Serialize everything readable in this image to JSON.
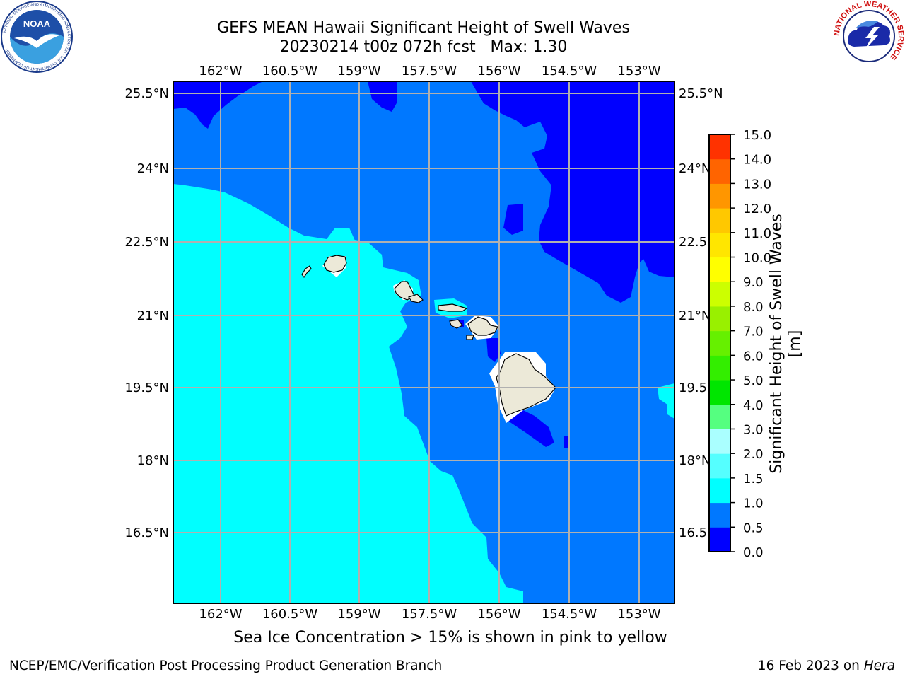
{
  "header": {
    "title": "GEFS MEAN Hawaii Significant Height of Swell Waves",
    "subtitle": "20230214 t00z 072h fcst   Max: 1.30"
  },
  "logos": {
    "noaa": {
      "text": "NOAA",
      "ring_text": "NATIONAL OCEANIC AND ATMOSPHERIC ADMINISTRATION · U.S. DEPARTMENT OF COMMERCE"
    },
    "nws": {
      "ring_text": "NATIONAL WEATHER SERVICE"
    }
  },
  "map": {
    "lon_ticks": [
      "162°W",
      "160.5°W",
      "159°W",
      "157.5°W",
      "156°W",
      "154.5°W",
      "153°W"
    ],
    "lat_ticks": [
      "25.5°N",
      "24°N",
      "22.5°N",
      "21°N",
      "19.5°N",
      "18°N",
      "16.5°N"
    ],
    "right_lat_ticks": [
      "25.5°N",
      "24°N",
      "22.5",
      "21°N",
      "19.5",
      "18°N",
      "16.5"
    ],
    "colors": {
      "band_0_0_5": "#0000ff",
      "band_0_5_1_0": "#0078ff",
      "band_1_0_1_5": "#00ffff",
      "land": "#ece9d8",
      "grid": "#b0b0b0"
    },
    "islands": [
      "Kauai",
      "Niihau",
      "Oahu",
      "Molokai",
      "Lanai",
      "Maui",
      "Kahoolawe",
      "Hawaii"
    ]
  },
  "colorbar": {
    "label": "Significant Height of Swell Waves [m]",
    "ticks": [
      "0.0",
      "0.5",
      "1.0",
      "1.5",
      "2.0",
      "3.0",
      "4.0",
      "5.0",
      "6.0",
      "7.0",
      "8.0",
      "9.0",
      "10.0",
      "11.0",
      "12.0",
      "13.0",
      "14.0",
      "15.0"
    ],
    "colors": [
      "#0000ff",
      "#0078ff",
      "#00ffff",
      "#55ffff",
      "#aaffff",
      "#55ff80",
      "#00e600",
      "#33ee00",
      "#66f000",
      "#99f000",
      "#ccff00",
      "#ffff00",
      "#ffe600",
      "#ffc800",
      "#ff9600",
      "#ff6400",
      "#ff3200",
      "#ff0000"
    ]
  },
  "notes": {
    "sea_ice": "Sea Ice Concentration > 15% is shown in pink to yellow"
  },
  "footer": {
    "left": "NCEP/EMC/Verification Post Processing Product Generation Branch",
    "date": "16 Feb 2023 on ",
    "machine": "Hera"
  }
}
